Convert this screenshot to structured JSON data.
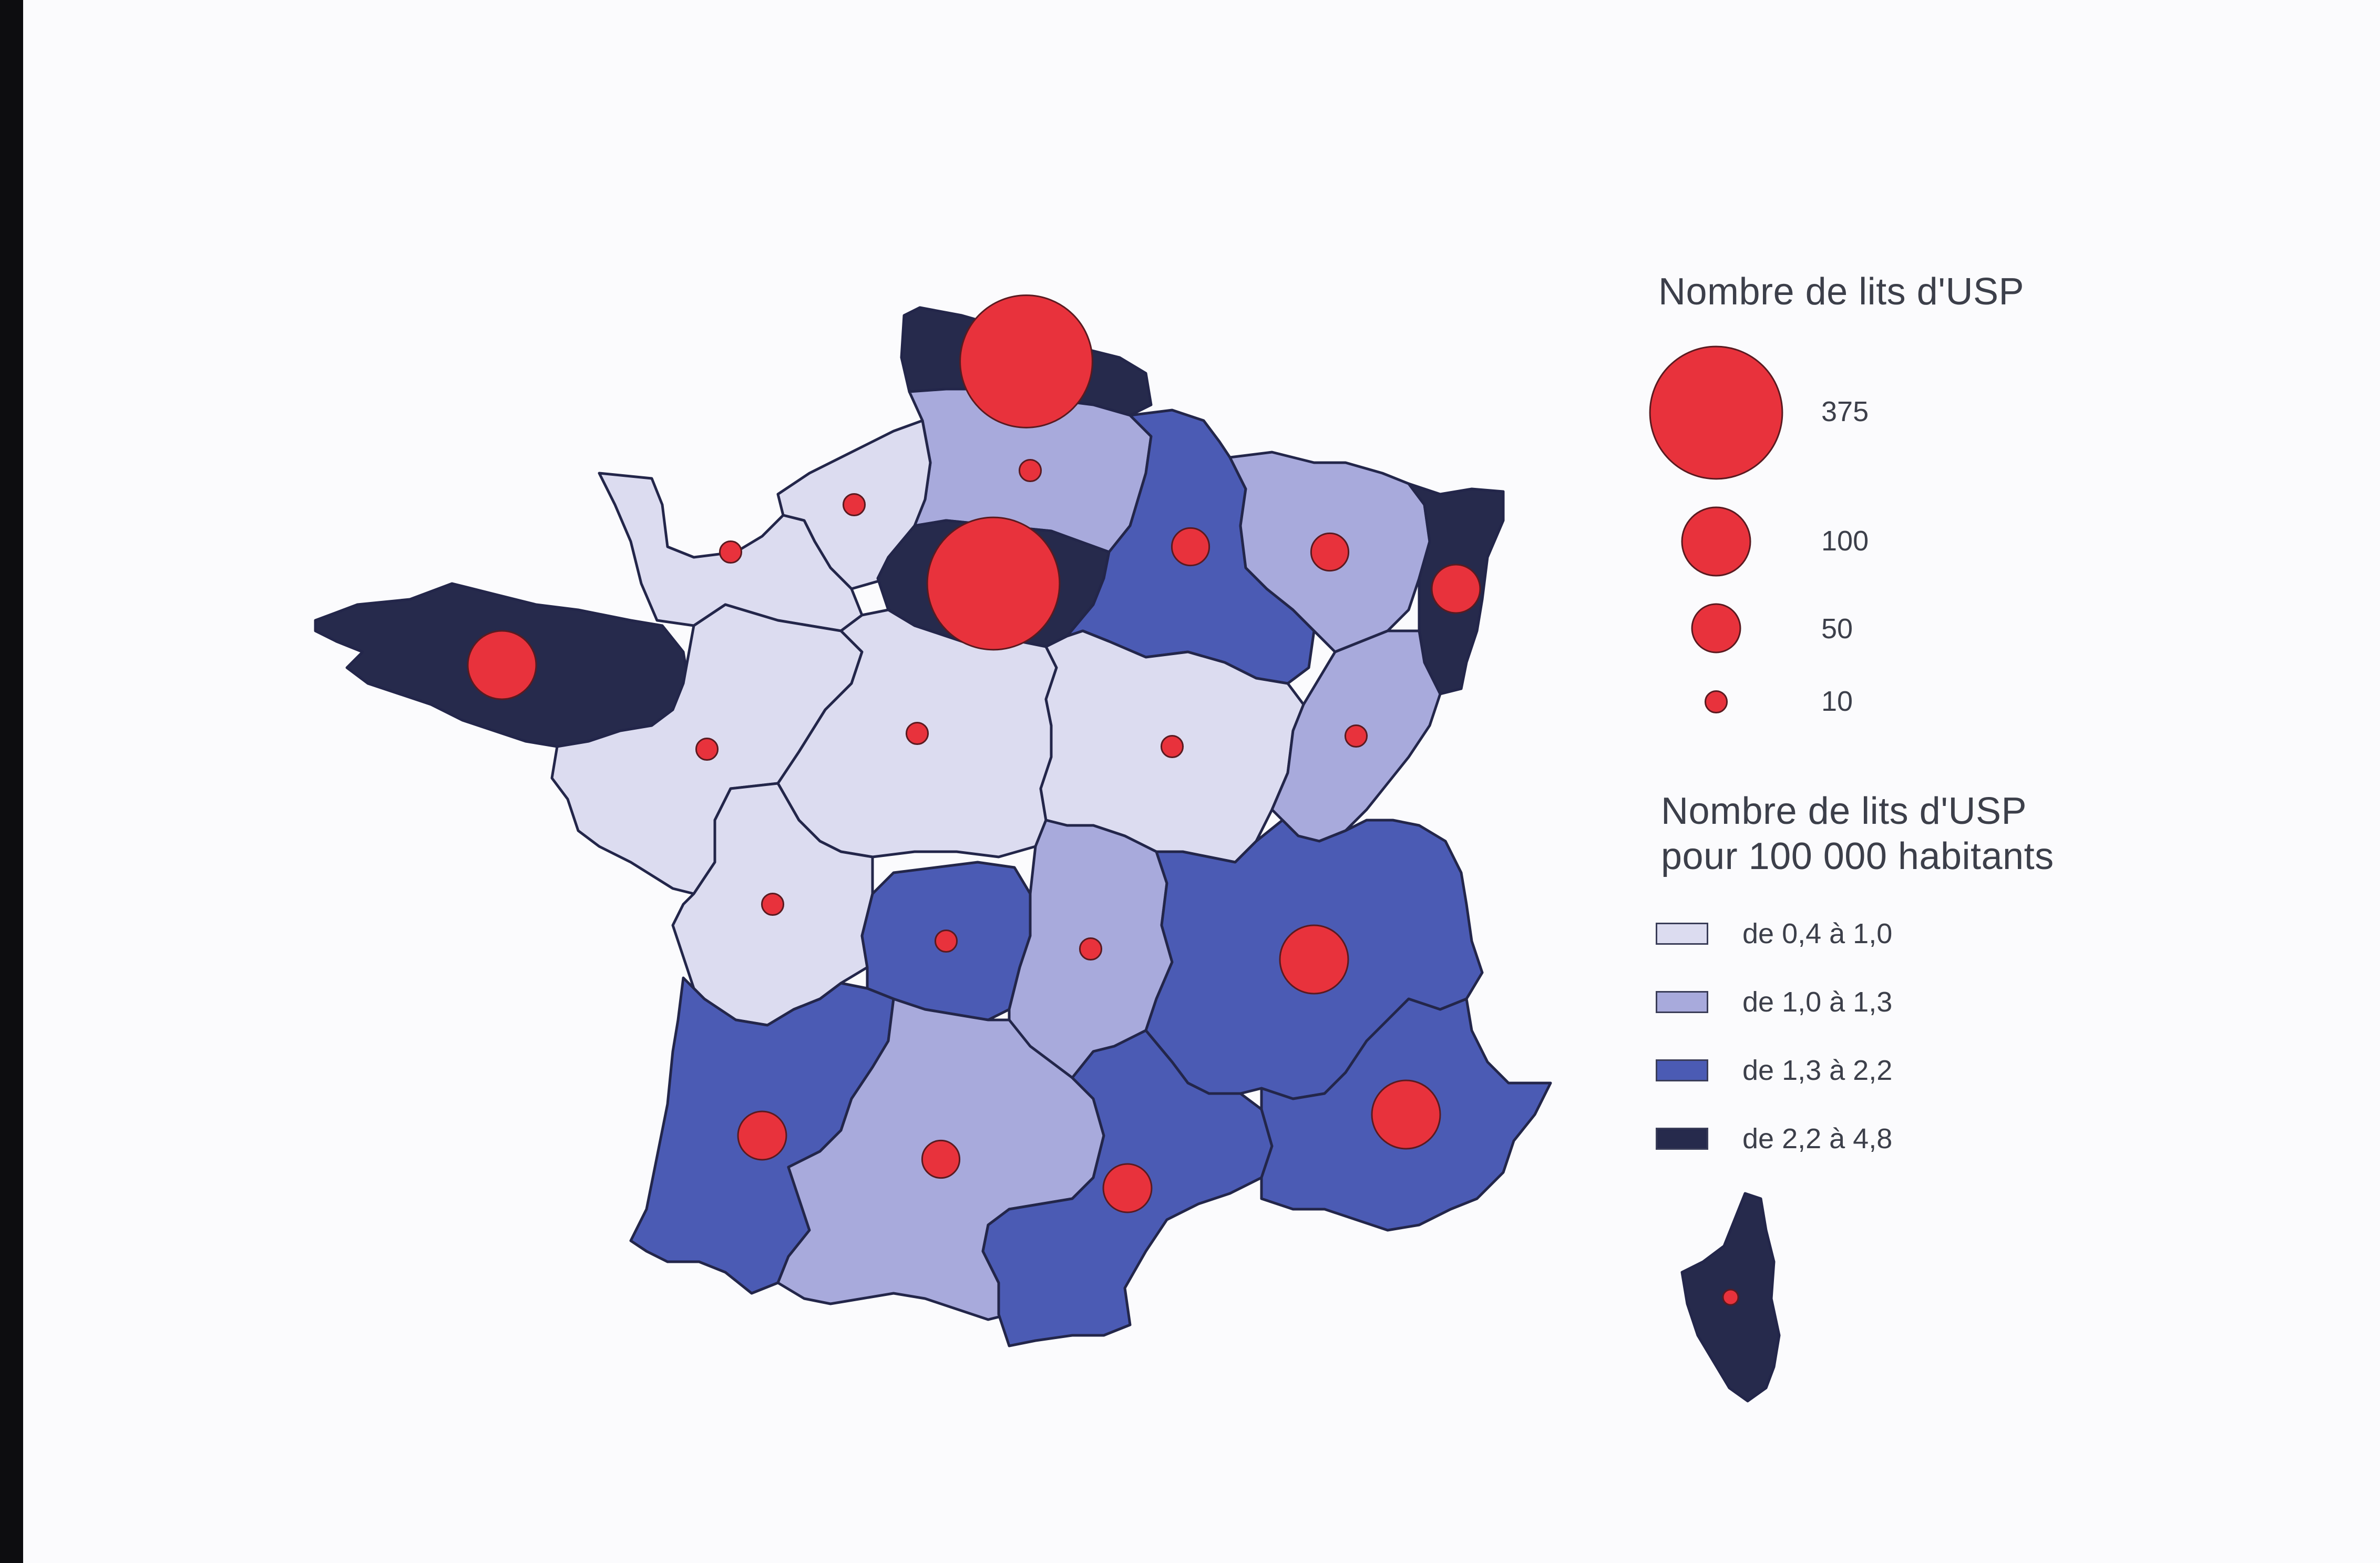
{
  "legend": {
    "size_title": "Nombre de lits d'USP",
    "size_classes": [
      {
        "value": 375,
        "label": "375"
      },
      {
        "value": 100,
        "label": "100"
      },
      {
        "value": 50,
        "label": "50"
      },
      {
        "value": 10,
        "label": "10"
      }
    ],
    "color_title_line1": "Nombre de lits d'USP",
    "color_title_line2": "pour 100 000 habitants",
    "color_classes": [
      {
        "label": "de 0,4 à 1,0",
        "color": "#dcdcf0"
      },
      {
        "label": "de 1,0 à 1,3",
        "color": "#a8aadc"
      },
      {
        "label": "de 1,3 à 2,2",
        "color": "#4b5bb4"
      },
      {
        "label": "de 2,2 à 4,8",
        "color": "#262a4c"
      }
    ]
  },
  "colors": {
    "bubble_fill": "#e8323c",
    "bubble_stroke": "#5a1a20",
    "region_stroke": "#23264a",
    "background": "#fbfbfd"
  },
  "map_data": {
    "regions": [
      {
        "id": "nord-pas-de-calais",
        "class": 3,
        "beds": 375
      },
      {
        "id": "picardie",
        "class": 1,
        "beds": 10
      },
      {
        "id": "haute-normandie",
        "class": 0,
        "beds": 10
      },
      {
        "id": "basse-normandie",
        "class": 0,
        "beds": 10
      },
      {
        "id": "ile-de-france",
        "class": 3,
        "beds": 375
      },
      {
        "id": "champagne-ardenne",
        "class": 2,
        "beds": 30
      },
      {
        "id": "lorraine",
        "class": 1,
        "beds": 30
      },
      {
        "id": "alsace",
        "class": 3,
        "beds": 50
      },
      {
        "id": "bretagne",
        "class": 3,
        "beds": 100
      },
      {
        "id": "pays-de-la-loire",
        "class": 0,
        "beds": 10
      },
      {
        "id": "centre",
        "class": 0,
        "beds": 10
      },
      {
        "id": "bourgogne",
        "class": 0,
        "beds": 10
      },
      {
        "id": "franche-comte",
        "class": 1,
        "beds": 10
      },
      {
        "id": "poitou-charentes",
        "class": 0,
        "beds": 10
      },
      {
        "id": "limousin",
        "class": 2,
        "beds": 10
      },
      {
        "id": "auvergne",
        "class": 1,
        "beds": 10
      },
      {
        "id": "rhone-alpes",
        "class": 2,
        "beds": 100
      },
      {
        "id": "aquitaine",
        "class": 2,
        "beds": 50
      },
      {
        "id": "midi-pyrenees",
        "class": 1,
        "beds": 30
      },
      {
        "id": "languedoc-roussillon",
        "class": 2,
        "beds": 50
      },
      {
        "id": "provence-alpes-cote-d-azur",
        "class": 2,
        "beds": 100
      },
      {
        "id": "corse",
        "class": 3,
        "beds": 5
      }
    ]
  }
}
